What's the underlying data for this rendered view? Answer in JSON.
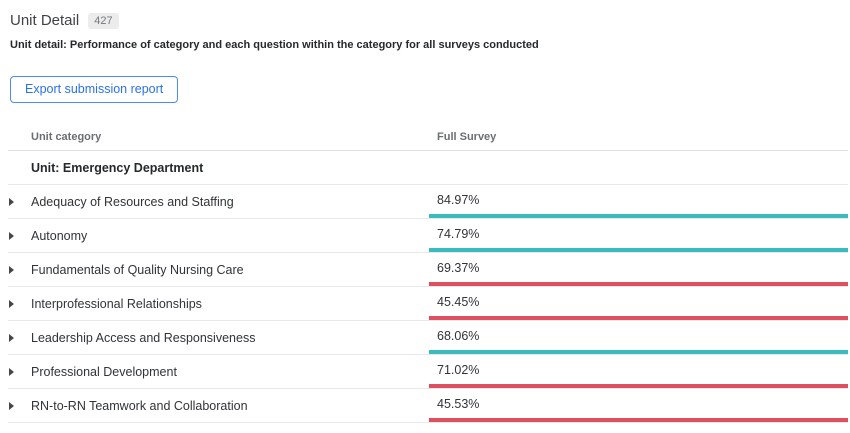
{
  "header": {
    "title": "Unit Detail",
    "badge_count": "427",
    "subtitle": "Unit detail: Performance of category and each question within the category for all surveys conducted",
    "export_button_label": "Export submission report"
  },
  "table": {
    "columns": {
      "category": "Unit category",
      "full_survey": "Full Survey"
    },
    "group_row_label": "Unit: Emergency Department",
    "rows": [
      {
        "label": "Adequacy of Resources and Staffing",
        "value": "84.97%",
        "status": "positive"
      },
      {
        "label": "Autonomy",
        "value": "74.79%",
        "status": "positive"
      },
      {
        "label": "Fundamentals of Quality Nursing Care",
        "value": "69.37%",
        "status": "negative"
      },
      {
        "label": "Interprofessional Relationships",
        "value": "45.45%",
        "status": "negative"
      },
      {
        "label": "Leadership Access and Responsiveness",
        "value": "68.06%",
        "status": "positive"
      },
      {
        "label": "Professional Development",
        "value": "71.02%",
        "status": "negative"
      },
      {
        "label": "RN-to-RN Teamwork and Collaboration",
        "value": "45.53%",
        "status": "negative"
      }
    ]
  },
  "icons": {
    "row_expand": "chevron-right-icon"
  },
  "colors": {
    "positive": "#3abcbf",
    "negative": "#e04f60",
    "accent_blue": "#2b72e8"
  }
}
